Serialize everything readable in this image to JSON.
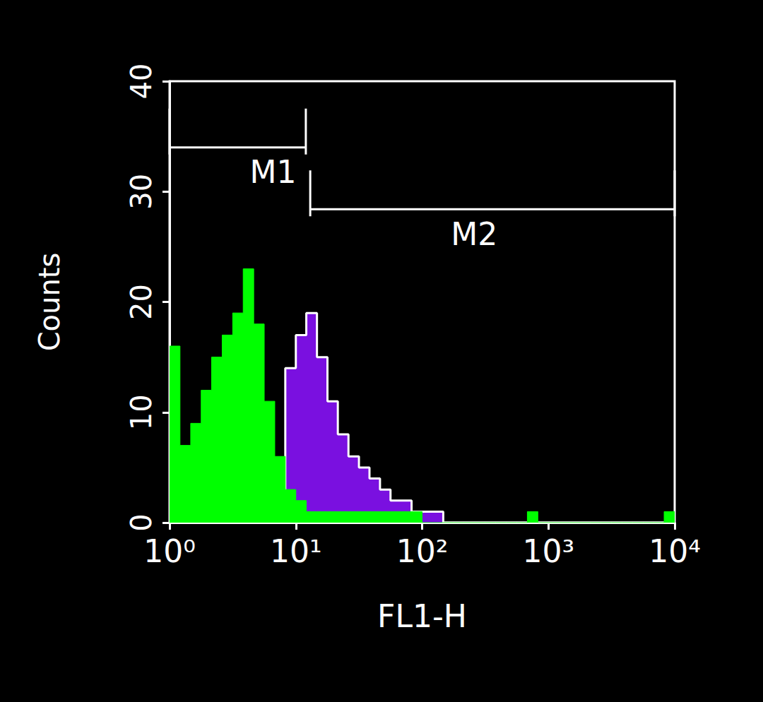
{
  "chart_data": {
    "type": "histogram",
    "x_label": "FL1-H",
    "y_label": "Counts",
    "log": "x",
    "xlim": [
      1,
      10000
    ],
    "xticks": [
      {
        "value": 1,
        "label": "10⁰"
      },
      {
        "value": 10,
        "label": "10¹"
      },
      {
        "value": 100,
        "label": "10²"
      },
      {
        "value": 1000,
        "label": "10³"
      },
      {
        "value": 10000,
        "label": "10⁴"
      }
    ],
    "ylim": [
      0,
      40
    ],
    "yticks": [
      0,
      10,
      20,
      30,
      40
    ],
    "grid": false,
    "bins": [
      1,
      1.21,
      1.47,
      1.78,
      2.15,
      2.61,
      3.16,
      3.83,
      4.64,
      5.62,
      6.81,
      8.25,
      10,
      12.1,
      14.7,
      17.8,
      21.5,
      26.1,
      31.6,
      38.3,
      46.4,
      56.2,
      68.1,
      82.5,
      100,
      121,
      147,
      178,
      215,
      261,
      316,
      383,
      464,
      562,
      681,
      825,
      1000,
      1210,
      1470,
      1780,
      2150,
      2610,
      3160,
      3830,
      4640,
      5620,
      6810,
      8250,
      10000
    ],
    "series": [
      {
        "color": "#7a10e0",
        "values": [
          0,
          0,
          0,
          0,
          0,
          0,
          0,
          0,
          0,
          0,
          0,
          14,
          17,
          19,
          15,
          11,
          8,
          6,
          5,
          4,
          3,
          2,
          2,
          1,
          1,
          1,
          0,
          0,
          0,
          0,
          0,
          0,
          0,
          0,
          0,
          0,
          0,
          0,
          0,
          0,
          0,
          0,
          0,
          0,
          0,
          0,
          0,
          0
        ]
      },
      {
        "color": "#00ff00",
        "values": [
          16,
          7,
          9,
          12,
          15,
          17,
          19,
          23,
          18,
          11,
          6,
          3,
          2,
          1,
          1,
          1,
          1,
          1,
          1,
          1,
          1,
          1,
          1,
          1,
          0,
          0,
          0,
          0,
          0,
          0,
          0,
          0,
          0,
          0,
          1,
          0,
          0,
          0,
          0,
          0,
          0,
          0,
          0,
          0,
          0,
          0,
          0,
          1
        ]
      }
    ],
    "markers": [
      {
        "label": "M1",
        "range": [
          1,
          12
        ]
      },
      {
        "label": "M2",
        "range": [
          13,
          10000
        ]
      }
    ]
  }
}
